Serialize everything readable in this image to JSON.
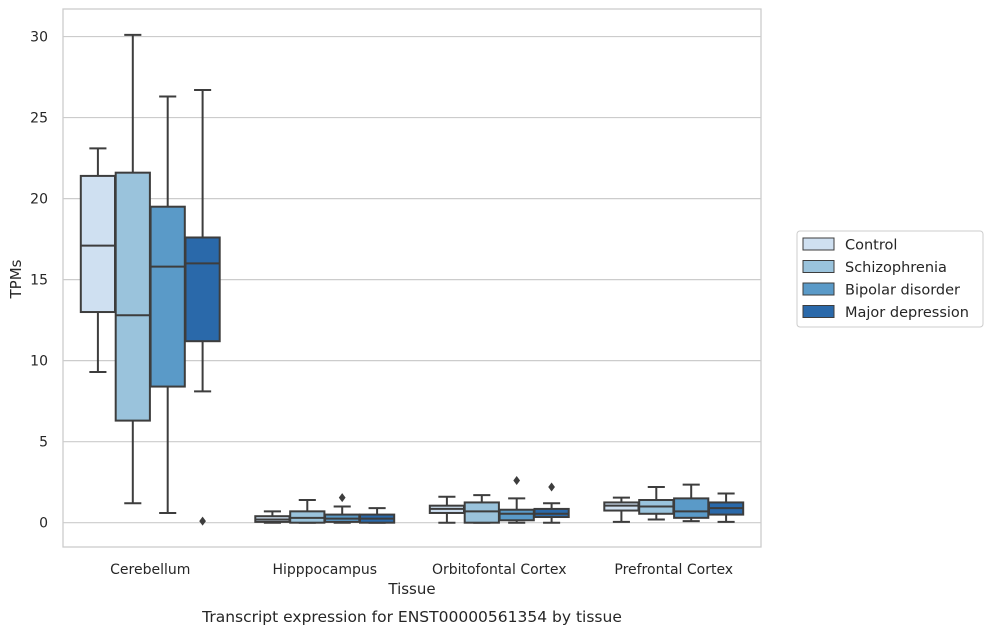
{
  "chart_data": {
    "type": "box",
    "xlabel": "Tissue",
    "ylabel": "TPMs",
    "caption": "Transcript expression for ENST00000561354 by tissue",
    "ylim": [
      -1.5,
      31.7
    ],
    "yticks": [
      0,
      5,
      10,
      15,
      20,
      25,
      30
    ],
    "categories": [
      "Cerebellum",
      "Hipppocampus",
      "Orbitofontal Cortex",
      "Prefrontal Cortex"
    ],
    "grid": "horizontal",
    "legend_position": "right",
    "series": [
      {
        "name": "Control",
        "color": "#cfe0f1",
        "boxes": [
          {
            "whisker_low": 9.3,
            "q1": 13.0,
            "median": 17.1,
            "q3": 21.4,
            "whisker_high": 23.1,
            "outliers": []
          },
          {
            "whisker_low": 0.0,
            "q1": 0.05,
            "median": 0.2,
            "q3": 0.4,
            "whisker_high": 0.7,
            "outliers": []
          },
          {
            "whisker_low": 0.0,
            "q1": 0.6,
            "median": 0.85,
            "q3": 1.05,
            "whisker_high": 1.6,
            "outliers": []
          },
          {
            "whisker_low": 0.05,
            "q1": 0.75,
            "median": 1.05,
            "q3": 1.25,
            "whisker_high": 1.55,
            "outliers": []
          }
        ]
      },
      {
        "name": "Schizophrenia",
        "color": "#9ac3dc",
        "boxes": [
          {
            "whisker_low": 1.2,
            "q1": 6.3,
            "median": 12.8,
            "q3": 21.6,
            "whisker_high": 30.1,
            "outliers": []
          },
          {
            "whisker_low": 0.0,
            "q1": 0.0,
            "median": 0.3,
            "q3": 0.7,
            "whisker_high": 1.4,
            "outliers": []
          },
          {
            "whisker_low": 0.0,
            "q1": 0.0,
            "median": 0.7,
            "q3": 1.25,
            "whisker_high": 1.7,
            "outliers": []
          },
          {
            "whisker_low": 0.2,
            "q1": 0.55,
            "median": 1.0,
            "q3": 1.4,
            "whisker_high": 2.2,
            "outliers": []
          }
        ]
      },
      {
        "name": "Bipolar disorder",
        "color": "#5a9ac8",
        "boxes": [
          {
            "whisker_low": 0.6,
            "q1": 8.4,
            "median": 15.8,
            "q3": 19.5,
            "whisker_high": 26.3,
            "outliers": []
          },
          {
            "whisker_low": 0.0,
            "q1": 0.05,
            "median": 0.25,
            "q3": 0.5,
            "whisker_high": 1.0,
            "outliers": [
              1.55
            ]
          },
          {
            "whisker_low": 0.0,
            "q1": 0.15,
            "median": 0.55,
            "q3": 0.8,
            "whisker_high": 1.5,
            "outliers": [
              2.6
            ]
          },
          {
            "whisker_low": 0.1,
            "q1": 0.3,
            "median": 0.7,
            "q3": 1.5,
            "whisker_high": 2.35,
            "outliers": []
          }
        ]
      },
      {
        "name": "Major depression",
        "color": "#2a69aa",
        "boxes": [
          {
            "whisker_low": 8.1,
            "q1": 11.2,
            "median": 16.0,
            "q3": 17.6,
            "whisker_high": 26.7,
            "outliers": [
              0.1
            ]
          },
          {
            "whisker_low": 0.0,
            "q1": 0.0,
            "median": 0.25,
            "q3": 0.5,
            "whisker_high": 0.9,
            "outliers": []
          },
          {
            "whisker_low": 0.0,
            "q1": 0.35,
            "median": 0.55,
            "q3": 0.85,
            "whisker_high": 1.2,
            "outliers": [
              2.2
            ]
          },
          {
            "whisker_low": 0.05,
            "q1": 0.5,
            "median": 0.9,
            "q3": 1.25,
            "whisker_high": 1.8,
            "outliers": []
          }
        ]
      }
    ]
  }
}
